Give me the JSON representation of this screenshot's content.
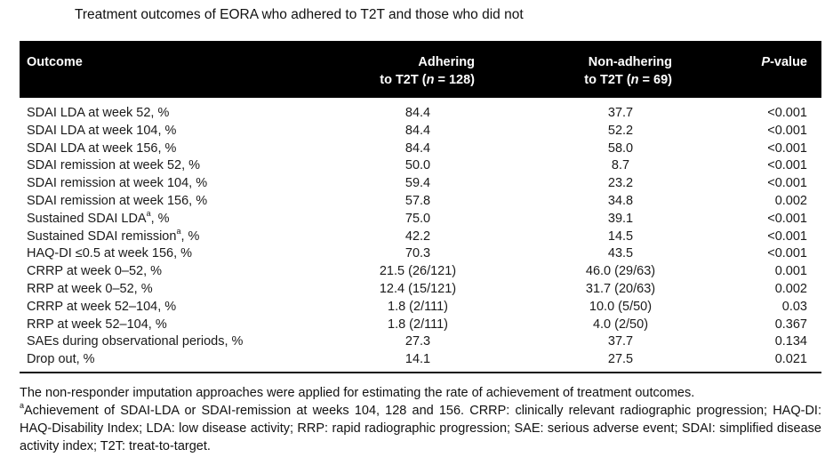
{
  "caption": "Treatment outcomes of EORA who adhered to T2T and those who did not",
  "header": {
    "outcome": "Outcome",
    "adhering_line1": "Adhering",
    "adhering_line2_prefix": "to T2T (",
    "adhering_n_italic": "n",
    "adhering_line2_suffix": " = 128)",
    "nonadhering_line1": "Non-adhering",
    "nonadhering_line2_prefix": "to T2T (",
    "nonadhering_n_italic": "n",
    "nonadhering_line2_suffix": " = 69)",
    "p_italic": "P",
    "p_suffix": "-value"
  },
  "rows": [
    {
      "outcome": "SDAI LDA at week 52, %",
      "sup": "",
      "outcome_tail": "",
      "adhering": "84.4",
      "nonadhering": "37.7",
      "p": "<0.001"
    },
    {
      "outcome": "SDAI LDA at week 104, %",
      "sup": "",
      "outcome_tail": "",
      "adhering": "84.4",
      "nonadhering": "52.2",
      "p": "<0.001"
    },
    {
      "outcome": "SDAI LDA at week 156, %",
      "sup": "",
      "outcome_tail": "",
      "adhering": "84.4",
      "nonadhering": "58.0",
      "p": "<0.001"
    },
    {
      "outcome": "SDAI remission at week 52, %",
      "sup": "",
      "outcome_tail": "",
      "adhering": "50.0",
      "nonadhering": "8.7",
      "p": "<0.001"
    },
    {
      "outcome": "SDAI remission at week 104, %",
      "sup": "",
      "outcome_tail": "",
      "adhering": "59.4",
      "nonadhering": "23.2",
      "p": "<0.001"
    },
    {
      "outcome": "SDAI remission at week 156, %",
      "sup": "",
      "outcome_tail": "",
      "adhering": "57.8",
      "nonadhering": "34.8",
      "p": "0.002"
    },
    {
      "outcome": "Sustained SDAI LDA",
      "sup": "a",
      "outcome_tail": ", %",
      "adhering": "75.0",
      "nonadhering": "39.1",
      "p": "<0.001"
    },
    {
      "outcome": "Sustained SDAI remission",
      "sup": "a",
      "outcome_tail": ", %",
      "adhering": "42.2",
      "nonadhering": "14.5",
      "p": "<0.001"
    },
    {
      "outcome": "HAQ-DI ≤0.5 at week 156, %",
      "sup": "",
      "outcome_tail": "",
      "adhering": "70.3",
      "nonadhering": "43.5",
      "p": "<0.001"
    },
    {
      "outcome": "CRRP at week 0–52, %",
      "sup": "",
      "outcome_tail": "",
      "adhering": "21.5 (26/121)",
      "nonadhering": "46.0 (29/63)",
      "p": "0.001"
    },
    {
      "outcome": "RRP at week 0–52, %",
      "sup": "",
      "outcome_tail": "",
      "adhering": "12.4 (15/121)",
      "nonadhering": "31.7 (20/63)",
      "p": "0.002"
    },
    {
      "outcome": "CRRP at week 52–104, %",
      "sup": "",
      "outcome_tail": "",
      "adhering": "1.8 (2/111)",
      "nonadhering": "10.0 (5/50)",
      "p": "0.03"
    },
    {
      "outcome": "RRP at week 52–104, %",
      "sup": "",
      "outcome_tail": "",
      "adhering": "1.8 (2/111)",
      "nonadhering": "4.0 (2/50)",
      "p": "0.367"
    },
    {
      "outcome": "SAEs during observational periods, %",
      "sup": "",
      "outcome_tail": "",
      "adhering": "27.3",
      "nonadhering": "37.7",
      "p": "0.134"
    },
    {
      "outcome": "Drop out, %",
      "sup": "",
      "outcome_tail": "",
      "adhering": "14.1",
      "nonadhering": "27.5",
      "p": "0.021"
    }
  ],
  "footnote": {
    "line1": "The non-responder imputation approaches were applied for estimating the rate of achievement of treatment outcomes.",
    "sup": "a",
    "line2": "Achievement of SDAI-LDA or SDAI-remission at weeks 104, 128 and 156. CRRP: clinically relevant radiographic progression; HAQ-DI: HAQ-Disability Index; LDA: low disease activity; RRP: rapid radiographic progression; SAE: serious adverse event; SDAI: simplified disease activity index; T2T: treat-to-target."
  }
}
